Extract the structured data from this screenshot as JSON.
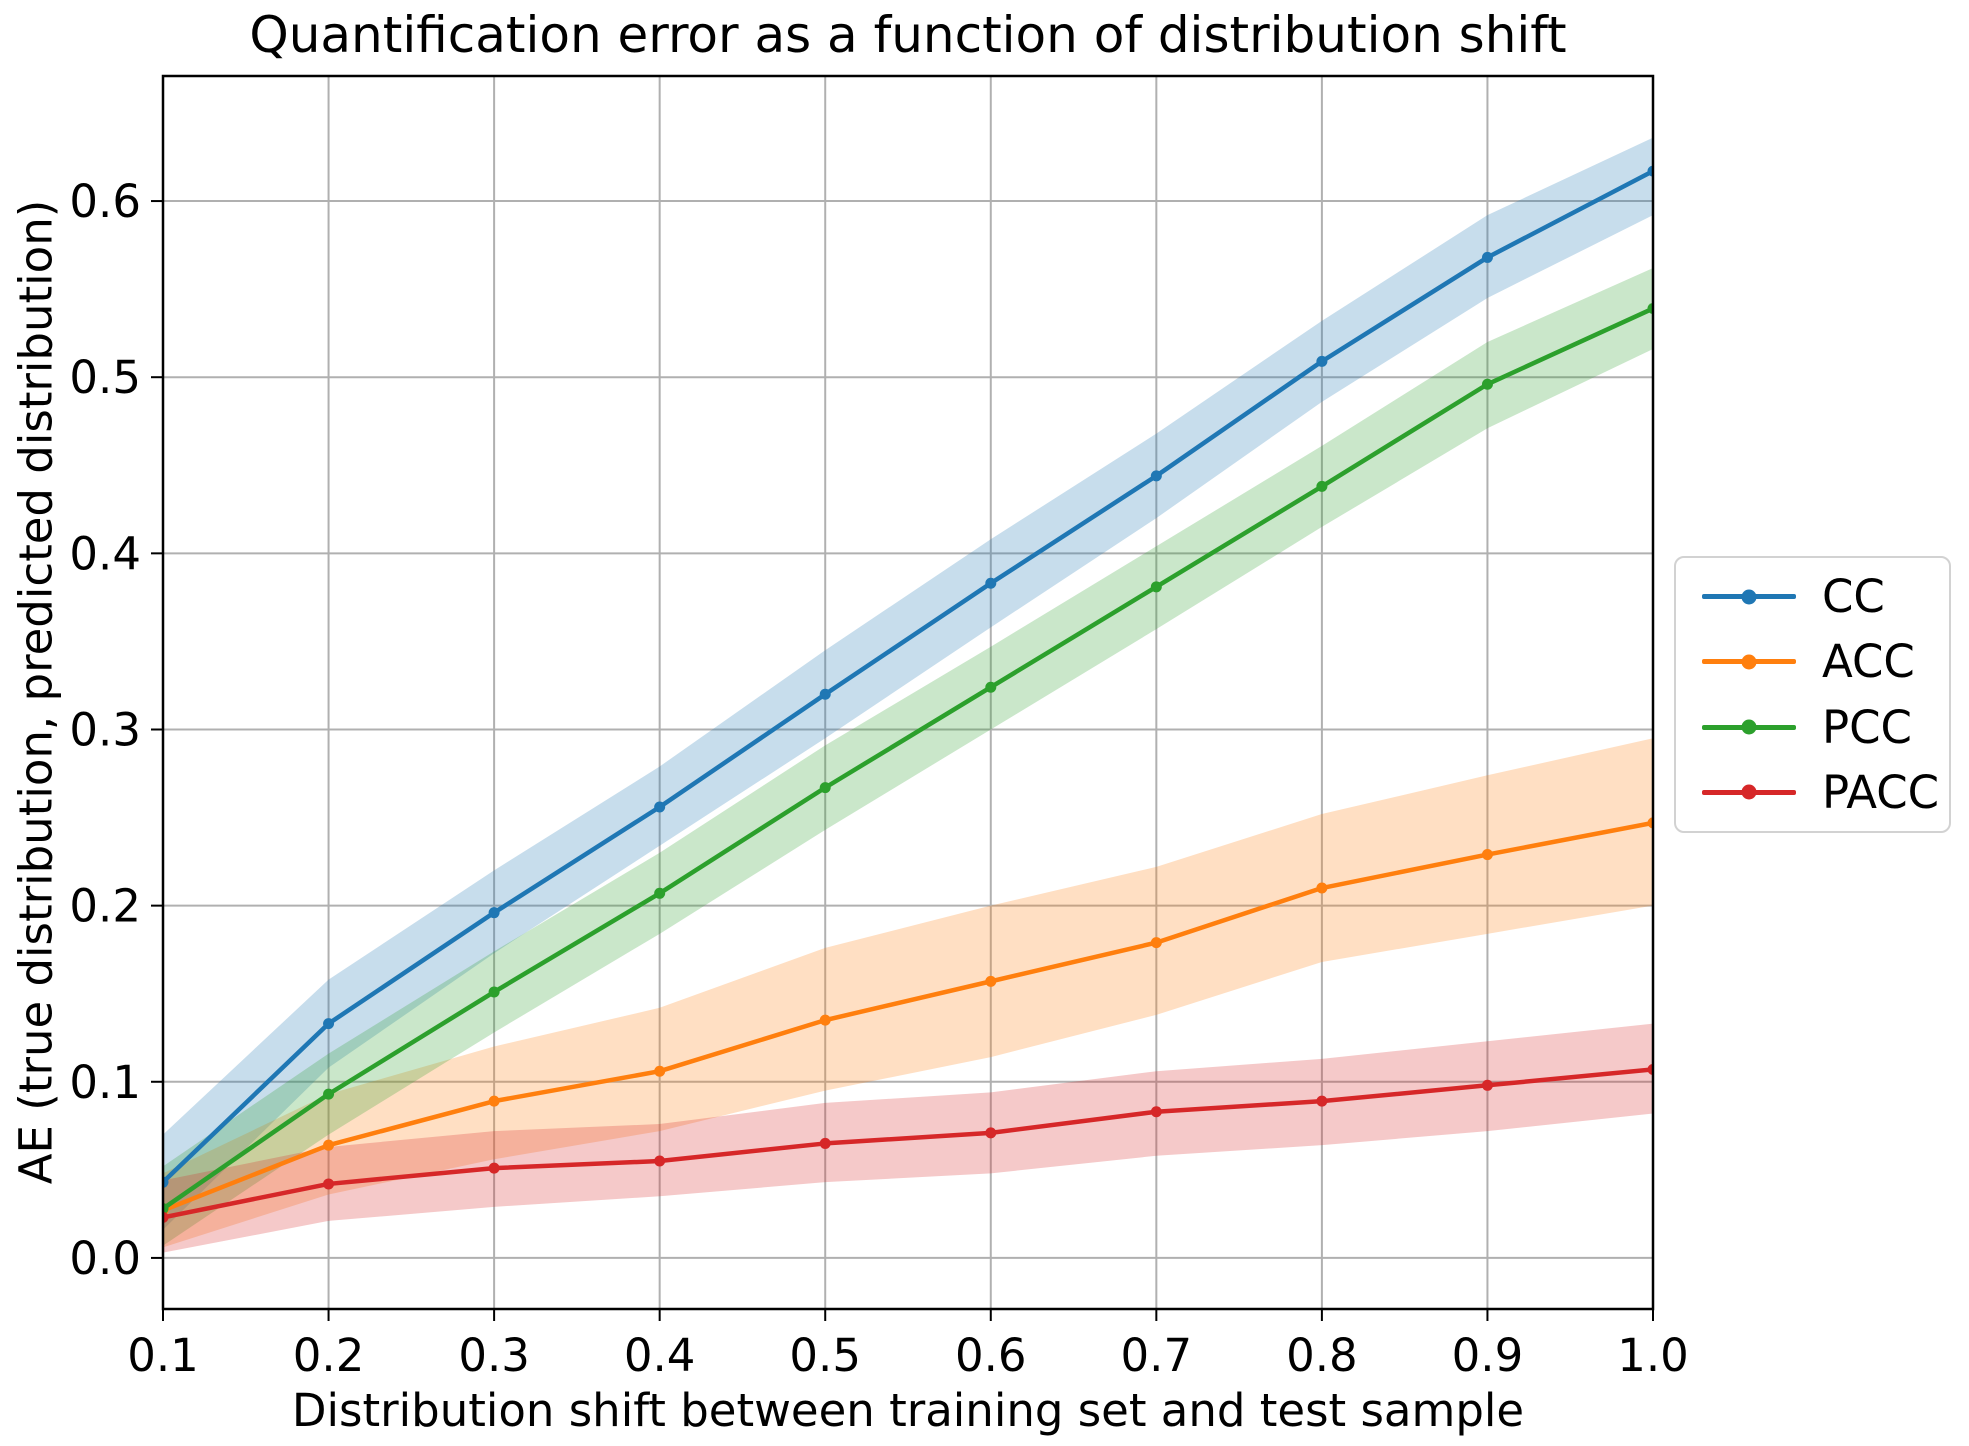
{
  "figure": {
    "title": "Quantification error as a function of distribution shift",
    "xlabel": "Distribution shift between training set and test sample",
    "ylabel": "AE (true distribution, predicted distribution)",
    "background_color": "#ffffff",
    "grid_color": "#b0b0b0",
    "spine_color": "#000000",
    "text_color": "#000000"
  },
  "chart_data": {
    "type": "line",
    "title": "Quantification error as a function of distribution shift",
    "xlabel": "Distribution shift between training set and test sample",
    "ylabel": "AE (true distribution, predicted distribution)",
    "x": [
      0.1,
      0.2,
      0.3,
      0.4,
      0.5,
      0.6,
      0.7,
      0.8,
      0.9,
      1.0
    ],
    "xticks": [
      0.1,
      0.2,
      0.3,
      0.4,
      0.5,
      0.6,
      0.7,
      0.8,
      0.9,
      1.0
    ],
    "yticks": [
      0.0,
      0.1,
      0.2,
      0.3,
      0.4,
      0.5,
      0.6
    ],
    "xlim": [
      0.1,
      1.0
    ],
    "ylim": [
      -0.029,
      0.671
    ],
    "grid": true,
    "legend_position": "center right, outside axes",
    "band_alpha": 0.25,
    "series": [
      {
        "name": "CC",
        "color": "#1f77b4",
        "values": [
          0.043,
          0.133,
          0.196,
          0.256,
          0.32,
          0.383,
          0.444,
          0.509,
          0.568,
          0.617
        ],
        "ci_lower": [
          0.016,
          0.108,
          0.173,
          0.234,
          0.295,
          0.358,
          0.42,
          0.486,
          0.545,
          0.592
        ],
        "ci_upper": [
          0.07,
          0.158,
          0.22,
          0.279,
          0.345,
          0.408,
          0.468,
          0.532,
          0.592,
          0.636
        ]
      },
      {
        "name": "ACC",
        "color": "#ff7f0e",
        "values": [
          0.027,
          0.064,
          0.089,
          0.106,
          0.135,
          0.157,
          0.179,
          0.21,
          0.229,
          0.247
        ],
        "ci_lower": [
          0.006,
          0.036,
          0.056,
          0.072,
          0.095,
          0.114,
          0.138,
          0.168,
          0.184,
          0.2
        ],
        "ci_upper": [
          0.048,
          0.093,
          0.12,
          0.142,
          0.176,
          0.2,
          0.222,
          0.252,
          0.274,
          0.295
        ]
      },
      {
        "name": "PCC",
        "color": "#2ca02c",
        "values": [
          0.028,
          0.093,
          0.151,
          0.207,
          0.267,
          0.324,
          0.381,
          0.438,
          0.496,
          0.539
        ],
        "ci_lower": [
          0.007,
          0.07,
          0.128,
          0.184,
          0.243,
          0.3,
          0.357,
          0.415,
          0.471,
          0.516
        ],
        "ci_upper": [
          0.052,
          0.116,
          0.174,
          0.23,
          0.291,
          0.347,
          0.404,
          0.461,
          0.52,
          0.562
        ]
      },
      {
        "name": "PACC",
        "color": "#d62728",
        "values": [
          0.023,
          0.042,
          0.051,
          0.055,
          0.065,
          0.071,
          0.083,
          0.089,
          0.098,
          0.107
        ],
        "ci_lower": [
          0.003,
          0.021,
          0.029,
          0.035,
          0.043,
          0.048,
          0.058,
          0.064,
          0.072,
          0.082
        ],
        "ci_upper": [
          0.044,
          0.063,
          0.072,
          0.076,
          0.088,
          0.094,
          0.106,
          0.113,
          0.123,
          0.133
        ]
      }
    ]
  }
}
